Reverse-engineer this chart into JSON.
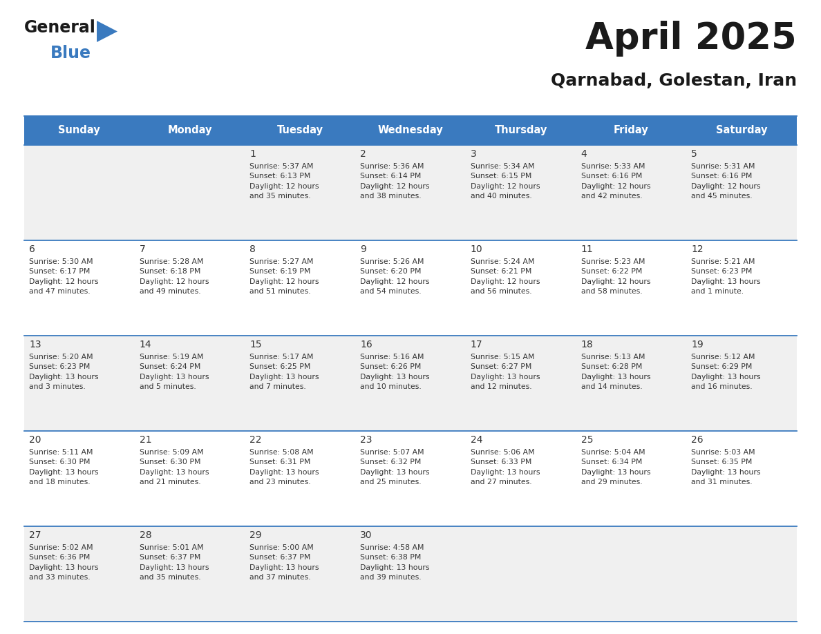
{
  "title": "April 2025",
  "subtitle": "Qarnabad, Golestan, Iran",
  "header_color": "#3a7abf",
  "header_text_color": "#ffffff",
  "cell_bg_even": "#f0f0f0",
  "cell_bg_odd": "#ffffff",
  "border_color": "#3a7abf",
  "text_color": "#333333",
  "days_of_week": [
    "Sunday",
    "Monday",
    "Tuesday",
    "Wednesday",
    "Thursday",
    "Friday",
    "Saturday"
  ],
  "weeks": [
    [
      {
        "day": "",
        "info": ""
      },
      {
        "day": "",
        "info": ""
      },
      {
        "day": "1",
        "info": "Sunrise: 5:37 AM\nSunset: 6:13 PM\nDaylight: 12 hours\nand 35 minutes."
      },
      {
        "day": "2",
        "info": "Sunrise: 5:36 AM\nSunset: 6:14 PM\nDaylight: 12 hours\nand 38 minutes."
      },
      {
        "day": "3",
        "info": "Sunrise: 5:34 AM\nSunset: 6:15 PM\nDaylight: 12 hours\nand 40 minutes."
      },
      {
        "day": "4",
        "info": "Sunrise: 5:33 AM\nSunset: 6:16 PM\nDaylight: 12 hours\nand 42 minutes."
      },
      {
        "day": "5",
        "info": "Sunrise: 5:31 AM\nSunset: 6:16 PM\nDaylight: 12 hours\nand 45 minutes."
      }
    ],
    [
      {
        "day": "6",
        "info": "Sunrise: 5:30 AM\nSunset: 6:17 PM\nDaylight: 12 hours\nand 47 minutes."
      },
      {
        "day": "7",
        "info": "Sunrise: 5:28 AM\nSunset: 6:18 PM\nDaylight: 12 hours\nand 49 minutes."
      },
      {
        "day": "8",
        "info": "Sunrise: 5:27 AM\nSunset: 6:19 PM\nDaylight: 12 hours\nand 51 minutes."
      },
      {
        "day": "9",
        "info": "Sunrise: 5:26 AM\nSunset: 6:20 PM\nDaylight: 12 hours\nand 54 minutes."
      },
      {
        "day": "10",
        "info": "Sunrise: 5:24 AM\nSunset: 6:21 PM\nDaylight: 12 hours\nand 56 minutes."
      },
      {
        "day": "11",
        "info": "Sunrise: 5:23 AM\nSunset: 6:22 PM\nDaylight: 12 hours\nand 58 minutes."
      },
      {
        "day": "12",
        "info": "Sunrise: 5:21 AM\nSunset: 6:23 PM\nDaylight: 13 hours\nand 1 minute."
      }
    ],
    [
      {
        "day": "13",
        "info": "Sunrise: 5:20 AM\nSunset: 6:23 PM\nDaylight: 13 hours\nand 3 minutes."
      },
      {
        "day": "14",
        "info": "Sunrise: 5:19 AM\nSunset: 6:24 PM\nDaylight: 13 hours\nand 5 minutes."
      },
      {
        "day": "15",
        "info": "Sunrise: 5:17 AM\nSunset: 6:25 PM\nDaylight: 13 hours\nand 7 minutes."
      },
      {
        "day": "16",
        "info": "Sunrise: 5:16 AM\nSunset: 6:26 PM\nDaylight: 13 hours\nand 10 minutes."
      },
      {
        "day": "17",
        "info": "Sunrise: 5:15 AM\nSunset: 6:27 PM\nDaylight: 13 hours\nand 12 minutes."
      },
      {
        "day": "18",
        "info": "Sunrise: 5:13 AM\nSunset: 6:28 PM\nDaylight: 13 hours\nand 14 minutes."
      },
      {
        "day": "19",
        "info": "Sunrise: 5:12 AM\nSunset: 6:29 PM\nDaylight: 13 hours\nand 16 minutes."
      }
    ],
    [
      {
        "day": "20",
        "info": "Sunrise: 5:11 AM\nSunset: 6:30 PM\nDaylight: 13 hours\nand 18 minutes."
      },
      {
        "day": "21",
        "info": "Sunrise: 5:09 AM\nSunset: 6:30 PM\nDaylight: 13 hours\nand 21 minutes."
      },
      {
        "day": "22",
        "info": "Sunrise: 5:08 AM\nSunset: 6:31 PM\nDaylight: 13 hours\nand 23 minutes."
      },
      {
        "day": "23",
        "info": "Sunrise: 5:07 AM\nSunset: 6:32 PM\nDaylight: 13 hours\nand 25 minutes."
      },
      {
        "day": "24",
        "info": "Sunrise: 5:06 AM\nSunset: 6:33 PM\nDaylight: 13 hours\nand 27 minutes."
      },
      {
        "day": "25",
        "info": "Sunrise: 5:04 AM\nSunset: 6:34 PM\nDaylight: 13 hours\nand 29 minutes."
      },
      {
        "day": "26",
        "info": "Sunrise: 5:03 AM\nSunset: 6:35 PM\nDaylight: 13 hours\nand 31 minutes."
      }
    ],
    [
      {
        "day": "27",
        "info": "Sunrise: 5:02 AM\nSunset: 6:36 PM\nDaylight: 13 hours\nand 33 minutes."
      },
      {
        "day": "28",
        "info": "Sunrise: 5:01 AM\nSunset: 6:37 PM\nDaylight: 13 hours\nand 35 minutes."
      },
      {
        "day": "29",
        "info": "Sunrise: 5:00 AM\nSunset: 6:37 PM\nDaylight: 13 hours\nand 37 minutes."
      },
      {
        "day": "30",
        "info": "Sunrise: 4:58 AM\nSunset: 6:38 PM\nDaylight: 13 hours\nand 39 minutes."
      },
      {
        "day": "",
        "info": ""
      },
      {
        "day": "",
        "info": ""
      },
      {
        "day": "",
        "info": ""
      }
    ]
  ],
  "logo_general_color": "#1a1a1a",
  "logo_blue_color": "#3a7abf",
  "logo_triangle_color": "#3a7abf"
}
